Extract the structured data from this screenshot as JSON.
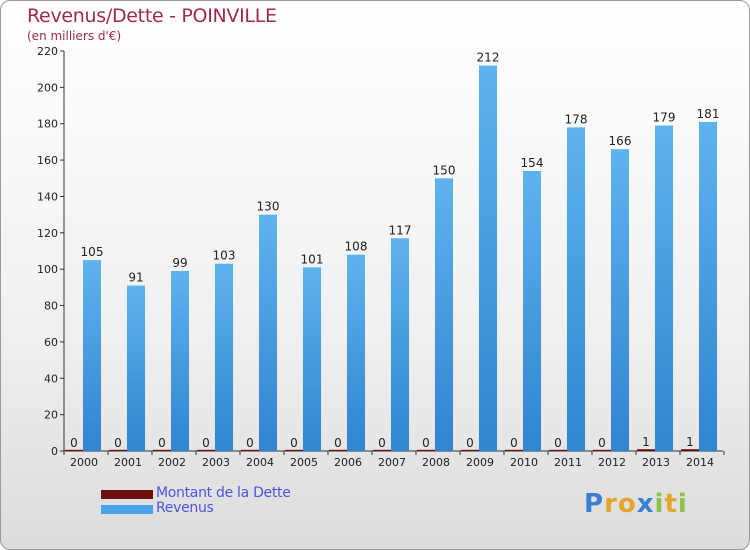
{
  "header": {
    "title": "Revenus/Dette - POINVILLE",
    "subtitle": "(en milliers d'€)"
  },
  "legend": {
    "items": [
      {
        "label": "Montant de la Dette",
        "color": "#6b0f0f"
      },
      {
        "label": "Revenus",
        "color": "#4aa3e8"
      }
    ]
  },
  "logo": {
    "letters": [
      {
        "ch": "P",
        "color": "#3a7fd1"
      },
      {
        "ch": "r",
        "color": "#e8a52b"
      },
      {
        "ch": "o",
        "color": "#e8a52b"
      },
      {
        "ch": "x",
        "color": "#3a7fd1"
      },
      {
        "ch": "i",
        "color": "#8ac24a"
      },
      {
        "ch": "t",
        "color": "#e8a52b"
      },
      {
        "ch": "i",
        "color": "#8ac24a"
      }
    ]
  },
  "chart_data": {
    "type": "bar",
    "categories": [
      "2000",
      "2001",
      "2002",
      "2003",
      "2004",
      "2005",
      "2006",
      "2007",
      "2008",
      "2009",
      "2010",
      "2011",
      "2012",
      "2013",
      "2014"
    ],
    "series": [
      {
        "name": "Montant de la Dette",
        "color": "#6b0f0f",
        "values": [
          0,
          0,
          0,
          0,
          0,
          0,
          0,
          0,
          0,
          0,
          0,
          0,
          0,
          1,
          1
        ]
      },
      {
        "name": "Revenus",
        "color": "#4aa3e8",
        "values": [
          105,
          91,
          99,
          103,
          130,
          101,
          108,
          117,
          150,
          212,
          154,
          178,
          166,
          179,
          181
        ]
      }
    ],
    "yticks": [
      0,
      20,
      40,
      60,
      80,
      100,
      120,
      140,
      160,
      180,
      200,
      220
    ],
    "ylim": [
      0,
      220
    ],
    "grid": false
  }
}
